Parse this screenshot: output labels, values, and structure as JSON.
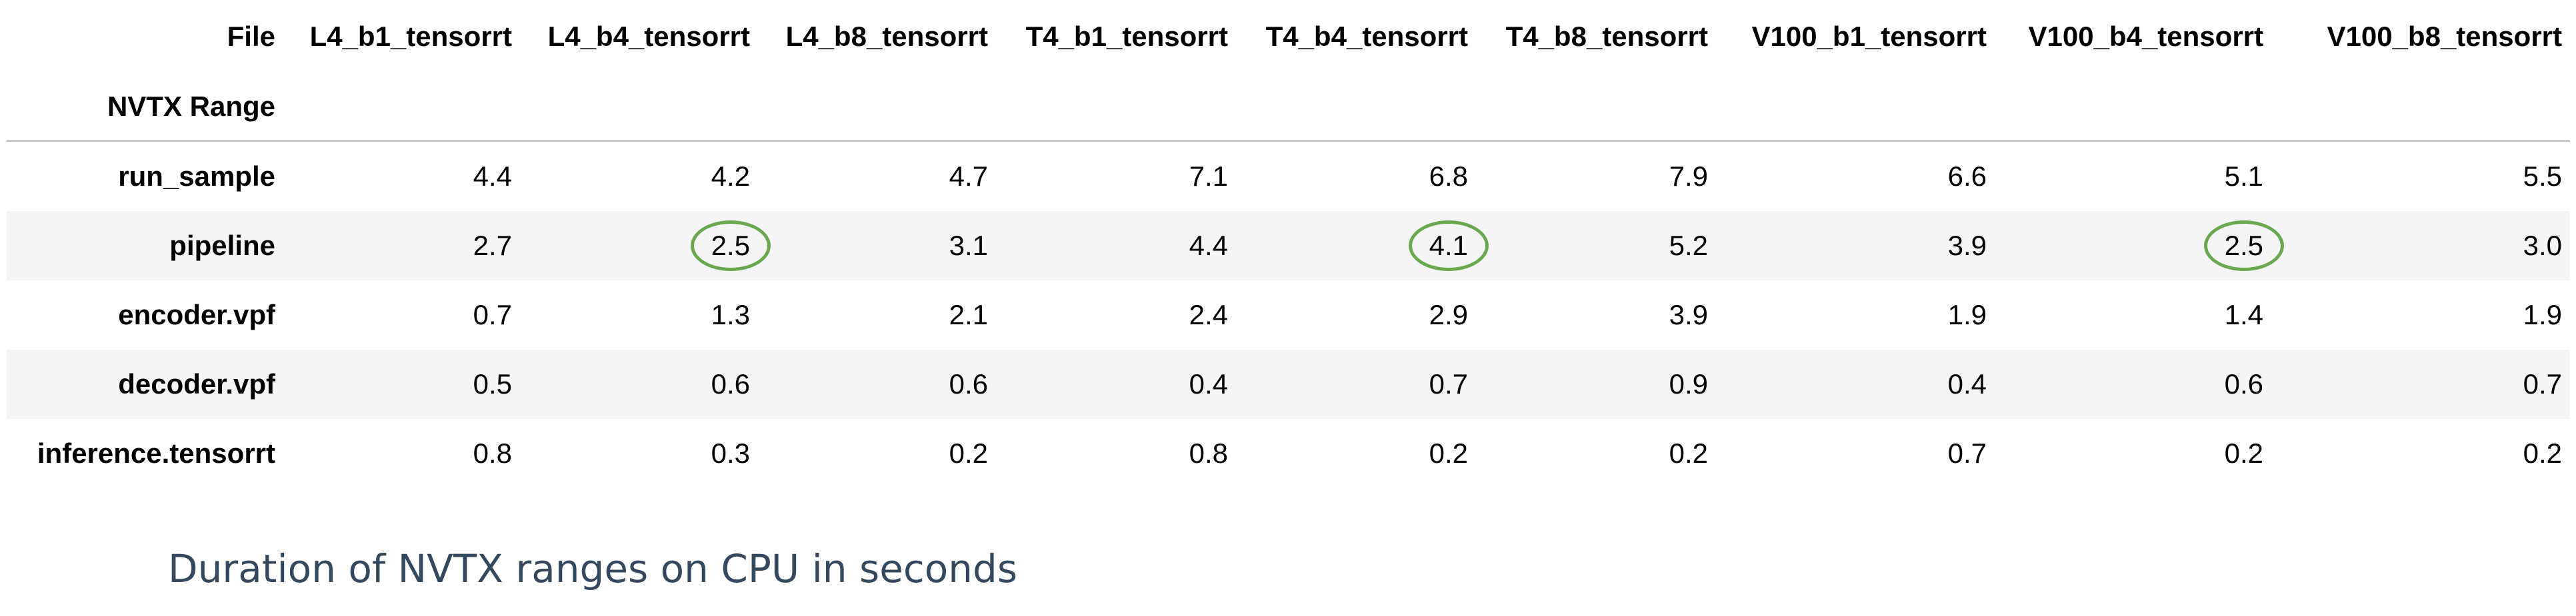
{
  "chart_data": {
    "type": "table",
    "column_header_label": "File",
    "index_label": "NVTX Range",
    "columns": [
      "L4_b1_tensorrt",
      "L4_b4_tensorrt",
      "L4_b8_tensorrt",
      "T4_b1_tensorrt",
      "T4_b4_tensorrt",
      "T4_b8_tensorrt",
      "V100_b1_tensorrt",
      "V100_b4_tensorrt",
      "V100_b8_tensorrt"
    ],
    "rows": [
      {
        "label": "run_sample",
        "values": [
          "4.4",
          "4.2",
          "4.7",
          "7.1",
          "6.8",
          "7.9",
          "6.6",
          "5.1",
          "5.5"
        ]
      },
      {
        "label": "pipeline",
        "values": [
          "2.7",
          "2.5",
          "3.1",
          "4.4",
          "4.1",
          "5.2",
          "3.9",
          "2.5",
          "3.0"
        ]
      },
      {
        "label": "encoder.vpf",
        "values": [
          "0.7",
          "1.3",
          "2.1",
          "2.4",
          "2.9",
          "3.9",
          "1.9",
          "1.4",
          "1.9"
        ]
      },
      {
        "label": "decoder.vpf",
        "values": [
          "0.5",
          "0.6",
          "0.6",
          "0.4",
          "0.7",
          "0.9",
          "0.4",
          "0.6",
          "0.7"
        ]
      },
      {
        "label": "inference.tensorrt",
        "values": [
          "0.8",
          "0.3",
          "0.2",
          "0.8",
          "0.2",
          "0.2",
          "0.7",
          "0.2",
          "0.2"
        ]
      }
    ],
    "highlighted_cells": [
      {
        "row": "pipeline",
        "column": "L4_b4_tensorrt"
      },
      {
        "row": "pipeline",
        "column": "T4_b4_tensorrt"
      },
      {
        "row": "pipeline",
        "column": "V100_b4_tensorrt"
      }
    ],
    "highlight_color": "#6aa84f",
    "stripe_color": "#f5f5f5",
    "caption": "Duration of NVTX ranges on CPU in seconds"
  }
}
